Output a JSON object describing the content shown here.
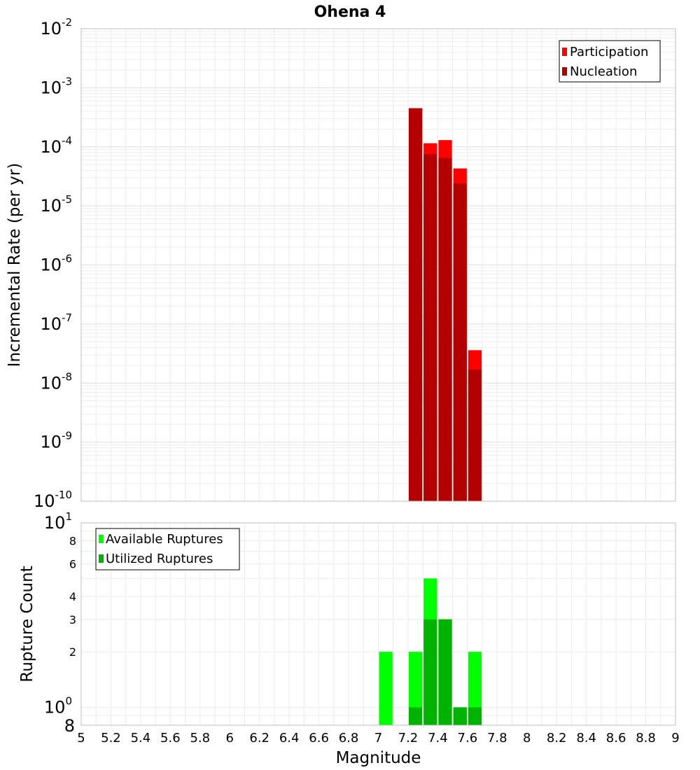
{
  "chart_data": [
    {
      "type": "bar",
      "title": "Ohena 4",
      "xlabel": "",
      "ylabel": "Incremental Rate (per yr)",
      "yscale": "log",
      "xlim": [
        5,
        9
      ],
      "ylim": [
        1e-10,
        0.01
      ],
      "grid": true,
      "legend_position": "top-right",
      "y_ticks": [
        {
          "base": "10",
          "exp": "-2"
        },
        {
          "base": "10",
          "exp": "-3"
        },
        {
          "base": "10",
          "exp": "-4"
        },
        {
          "base": "10",
          "exp": "-5"
        },
        {
          "base": "10",
          "exp": "-6"
        },
        {
          "base": "10",
          "exp": "-7"
        },
        {
          "base": "10",
          "exp": "-8"
        },
        {
          "base": "10",
          "exp": "-9"
        },
        {
          "base": "10",
          "exp": "-10"
        }
      ],
      "bin_width": 0.1,
      "series": [
        {
          "name": "Participation",
          "color": "#ff0000",
          "x": [
            7.25,
            7.35,
            7.45,
            7.55,
            7.65
          ],
          "values": [
            0.00045,
            0.000115,
            0.00013,
            4.3e-05,
            3.6e-08
          ]
        },
        {
          "name": "Nucleation",
          "color": "#b30000",
          "x": [
            7.25,
            7.35,
            7.45,
            7.55,
            7.65
          ],
          "values": [
            0.00045,
            7.5e-05,
            6.5e-05,
            2.4e-05,
            1.7e-08
          ]
        }
      ]
    },
    {
      "type": "bar",
      "xlabel": "Magnitude",
      "ylabel": "Rupture Count",
      "yscale": "log",
      "xlim": [
        5,
        9
      ],
      "ylim": [
        0.8,
        10
      ],
      "grid": true,
      "legend_position": "top-left",
      "y_ticks": [
        {
          "value": 10,
          "base": "10",
          "exp": "1",
          "big": true
        },
        {
          "value": 8,
          "label": "8"
        },
        {
          "value": 6,
          "label": "6"
        },
        {
          "value": 4,
          "label": "4"
        },
        {
          "value": 3,
          "label": "3"
        },
        {
          "value": 2,
          "label": "2"
        },
        {
          "value": 1,
          "base": "10",
          "exp": "0",
          "big": true
        },
        {
          "value": 0.8,
          "label": "8",
          "big": true
        }
      ],
      "x_ticks": [
        "5",
        "5.2",
        "5.4",
        "5.6",
        "5.8",
        "6",
        "6.2",
        "6.4",
        "6.6",
        "6.8",
        "7",
        "7.2",
        "7.4",
        "7.6",
        "7.8",
        "8",
        "8.2",
        "8.4",
        "8.6",
        "8.8",
        "9"
      ],
      "bin_width": 0.1,
      "series": [
        {
          "name": "Available Ruptures",
          "color": "#00ff00",
          "x": [
            7.05,
            7.25,
            7.35,
            7.45,
            7.55,
            7.65
          ],
          "values": [
            2,
            2,
            5,
            3,
            1,
            2
          ]
        },
        {
          "name": "Utilized Ruptures",
          "color": "#00b300",
          "x": [
            7.25,
            7.35,
            7.45,
            7.55,
            7.65
          ],
          "values": [
            1,
            3,
            3,
            1,
            1
          ]
        }
      ]
    }
  ]
}
